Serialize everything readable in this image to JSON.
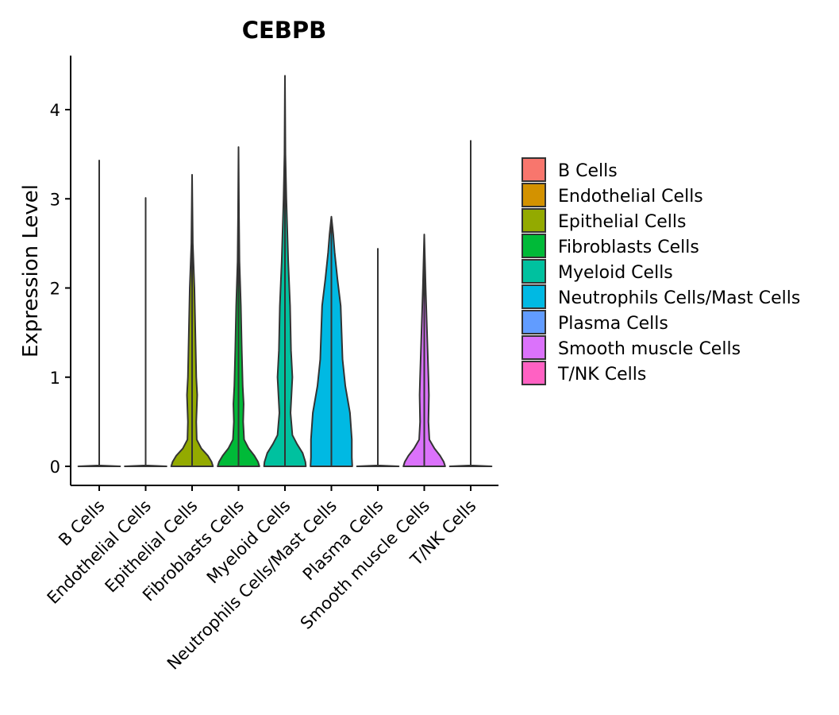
{
  "chart_data": {
    "type": "violin",
    "title": "CEBPB",
    "xlabel": "",
    "ylabel": "Expression Level",
    "ylim": [
      -0.2,
      4.6
    ],
    "yticks": [
      0,
      1,
      2,
      3,
      4
    ],
    "grid": false,
    "legend_position": "right",
    "categories": [
      "B Cells",
      "Endothelial Cells",
      "Epithelial Cells",
      "Fibroblasts Cells",
      "Myeloid Cells",
      "Neutrophils Cells/Mast Cells",
      "Plasma Cells",
      "Smooth muscle Cells",
      "T/NK Cells"
    ],
    "colors": [
      "#F8766D",
      "#D39200",
      "#93AA00",
      "#00BA38",
      "#00C19F",
      "#00B9E3",
      "#619CFF",
      "#DB72FB",
      "#FF61C3"
    ],
    "max_values": [
      3.43,
      3.01,
      3.27,
      3.58,
      4.38,
      2.8,
      2.44,
      2.6,
      3.65
    ],
    "density_profiles": [
      [
        [
          0,
          0.45
        ],
        [
          0.01,
          0.0
        ],
        [
          0.5,
          0.0
        ],
        [
          3.43,
          0.0
        ]
      ],
      [
        [
          0,
          0.45
        ],
        [
          0.01,
          0.0
        ],
        [
          0.5,
          0.0
        ],
        [
          3.01,
          0.0
        ]
      ],
      [
        [
          0,
          0.45
        ],
        [
          0.05,
          0.42
        ],
        [
          0.12,
          0.34
        ],
        [
          0.2,
          0.2
        ],
        [
          0.3,
          0.1
        ],
        [
          0.5,
          0.09
        ],
        [
          0.8,
          0.11
        ],
        [
          1.0,
          0.09
        ],
        [
          1.5,
          0.07
        ],
        [
          2.0,
          0.05
        ],
        [
          2.5,
          0.015
        ],
        [
          3.27,
          0.0
        ]
      ],
      [
        [
          0,
          0.45
        ],
        [
          0.05,
          0.42
        ],
        [
          0.12,
          0.34
        ],
        [
          0.2,
          0.22
        ],
        [
          0.3,
          0.12
        ],
        [
          0.5,
          0.1
        ],
        [
          0.7,
          0.11
        ],
        [
          0.9,
          0.09
        ],
        [
          1.3,
          0.07
        ],
        [
          1.8,
          0.05
        ],
        [
          2.3,
          0.02
        ],
        [
          2.8,
          0.01
        ],
        [
          3.58,
          0.0
        ]
      ],
      [
        [
          0,
          0.45
        ],
        [
          0.05,
          0.44
        ],
        [
          0.15,
          0.38
        ],
        [
          0.25,
          0.26
        ],
        [
          0.35,
          0.16
        ],
        [
          0.6,
          0.12
        ],
        [
          1.0,
          0.16
        ],
        [
          1.3,
          0.13
        ],
        [
          1.8,
          0.11
        ],
        [
          2.3,
          0.07
        ],
        [
          3.0,
          0.03
        ],
        [
          3.5,
          0.01
        ],
        [
          4.38,
          0.0
        ]
      ],
      [
        [
          0,
          0.45
        ],
        [
          0.1,
          0.44
        ],
        [
          0.3,
          0.44
        ],
        [
          0.6,
          0.4
        ],
        [
          0.9,
          0.3
        ],
        [
          1.2,
          0.24
        ],
        [
          1.5,
          0.22
        ],
        [
          1.8,
          0.2
        ],
        [
          2.1,
          0.13
        ],
        [
          2.4,
          0.07
        ],
        [
          2.6,
          0.04
        ],
        [
          2.75,
          0.01
        ],
        [
          2.8,
          0.0
        ]
      ],
      [
        [
          0,
          0.45
        ],
        [
          0.01,
          0.0
        ],
        [
          0.5,
          0.0
        ],
        [
          2.44,
          0.0
        ]
      ],
      [
        [
          0,
          0.45
        ],
        [
          0.05,
          0.42
        ],
        [
          0.12,
          0.34
        ],
        [
          0.2,
          0.22
        ],
        [
          0.3,
          0.11
        ],
        [
          0.5,
          0.09
        ],
        [
          0.8,
          0.1
        ],
        [
          1.0,
          0.09
        ],
        [
          1.5,
          0.06
        ],
        [
          2.0,
          0.03
        ],
        [
          2.6,
          0.0
        ]
      ],
      [
        [
          0,
          0.45
        ],
        [
          0.01,
          0.0
        ],
        [
          0.5,
          0.0
        ],
        [
          3.65,
          0.0
        ]
      ]
    ]
  }
}
